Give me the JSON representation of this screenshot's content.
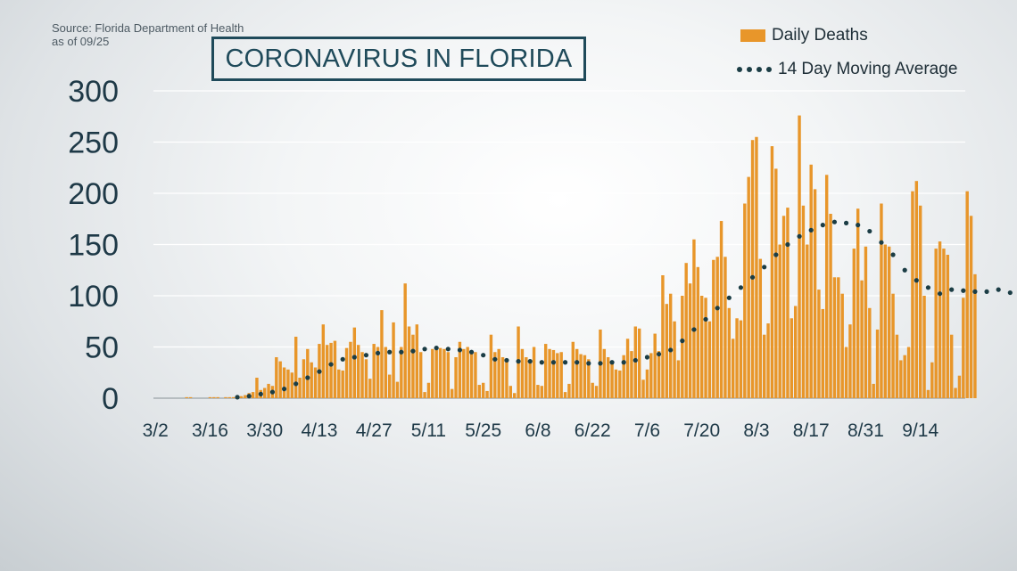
{
  "source_lines": [
    "Source: Florida Department of Health",
    "as of 09/25"
  ],
  "title": "CORONAVIRUS IN FLORIDA",
  "legend": {
    "bars": "Daily Deaths",
    "line": "14 Day Moving Average"
  },
  "colors": {
    "bars": "#e8962a",
    "moving_average": "#1b3d45",
    "title": "#1f4a5a",
    "tick_text": "#1e3947",
    "grid": "#ffffff"
  },
  "chart_data": {
    "type": "bar",
    "title": "CORONAVIRUS IN FLORIDA",
    "xlabel": "",
    "ylabel": "",
    "x_tick_labels": [
      "3/2",
      "3/16",
      "3/30",
      "4/13",
      "4/27",
      "5/11",
      "5/25",
      "6/8",
      "6/22",
      "7/6",
      "7/20",
      "8/3",
      "8/17",
      "8/31",
      "9/14"
    ],
    "y_ticks": [
      0,
      50,
      100,
      150,
      200,
      250,
      300
    ],
    "ylim": [
      0,
      300
    ],
    "grid": true,
    "legend_position": "top-right",
    "start_date": "3/2",
    "num_days": 208,
    "series": [
      {
        "name": "Daily Deaths",
        "type": "bar",
        "values": [
          0,
          0,
          0,
          0,
          0,
          0,
          0,
          0,
          1,
          1,
          0,
          0,
          0,
          0,
          1,
          1,
          1,
          0,
          1,
          1,
          1,
          2,
          2,
          3,
          5,
          6,
          20,
          8,
          10,
          14,
          12,
          40,
          36,
          30,
          28,
          25,
          60,
          20,
          38,
          48,
          35,
          30,
          53,
          72,
          52,
          54,
          56,
          28,
          27,
          49,
          55,
          69,
          52,
          45,
          38,
          19,
          53,
          50,
          86,
          50,
          23,
          74,
          16,
          50,
          112,
          70,
          62,
          72,
          45,
          6,
          15,
          48,
          47,
          49,
          48,
          45,
          9,
          40,
          55,
          48,
          50,
          46,
          45,
          13,
          15,
          7,
          62,
          45,
          48,
          40,
          38,
          12,
          5,
          70,
          48,
          40,
          36,
          50,
          13,
          12,
          53,
          48,
          47,
          44,
          45,
          6,
          14,
          55,
          48,
          43,
          42,
          38,
          15,
          12,
          67,
          48,
          40,
          36,
          28,
          27,
          42,
          58,
          46,
          70,
          68,
          18,
          28,
          44,
          63,
          46,
          120,
          92,
          102,
          75,
          37,
          100,
          132,
          112,
          155,
          128,
          100,
          98,
          75,
          135,
          138,
          173,
          138,
          88,
          58,
          78,
          76,
          190,
          216,
          252,
          255,
          136,
          62,
          73,
          246,
          224,
          150,
          178,
          186,
          78,
          90,
          276,
          188,
          150,
          228,
          204,
          106,
          87,
          218,
          180,
          118,
          118,
          102,
          50,
          72,
          146,
          185,
          115,
          148,
          88,
          14,
          67,
          190,
          150,
          148,
          102,
          62,
          37,
          42,
          50,
          202,
          212,
          188,
          100,
          8,
          35,
          146,
          153,
          146,
          140,
          62,
          10,
          22,
          98,
          202,
          178,
          121
        ]
      },
      {
        "name": "14 Day Moving Average",
        "type": "line",
        "style": "dotted",
        "start_index": 21,
        "step": 3,
        "values": [
          1,
          2,
          4,
          6,
          9,
          14,
          20,
          26,
          33,
          38,
          40,
          42,
          44,
          45,
          45,
          46,
          48,
          49,
          48,
          47,
          45,
          42,
          38,
          37,
          36,
          36,
          35,
          35,
          35,
          35,
          34,
          34,
          35,
          35,
          37,
          40,
          43,
          47,
          56,
          67,
          77,
          88,
          98,
          108,
          118,
          128,
          140,
          150,
          158,
          164,
          169,
          172,
          171,
          169,
          163,
          152,
          140,
          125,
          115,
          108,
          102,
          106,
          105,
          104,
          104,
          106,
          103
        ]
      }
    ]
  }
}
